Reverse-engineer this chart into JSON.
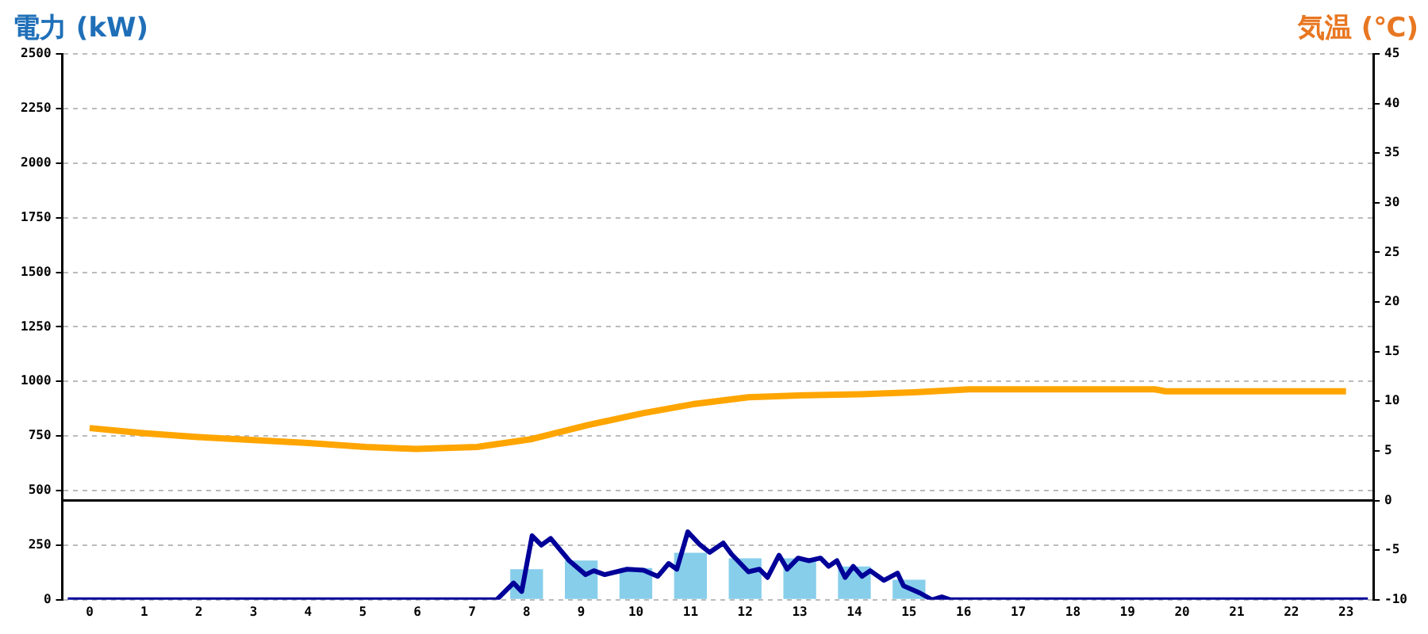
{
  "chart_data": {
    "type": "bar",
    "ylabel": "電力 (kW)",
    "y2label": "気温 (℃)",
    "x": [
      0,
      1,
      2,
      3,
      4,
      5,
      6,
      7,
      8,
      9,
      10,
      11,
      12,
      13,
      14,
      15,
      16,
      17,
      18,
      19,
      20,
      21,
      22,
      23
    ],
    "xlim": [
      -0.5,
      23.5
    ],
    "xticks": [
      0,
      1,
      2,
      3,
      4,
      5,
      6,
      7,
      8,
      9,
      10,
      11,
      12,
      13,
      14,
      15,
      16,
      17,
      18,
      19,
      20,
      21,
      22,
      23
    ],
    "ylim": [
      0,
      2500
    ],
    "yticks": [
      0,
      250,
      500,
      750,
      1000,
      1250,
      1500,
      1750,
      2000,
      2250,
      2500
    ],
    "y2lim": [
      -10,
      45
    ],
    "y2ticks": [
      -10,
      -5,
      0,
      5,
      10,
      15,
      20,
      25,
      30,
      35,
      40,
      45
    ],
    "grid": "y",
    "legend": false,
    "marker": "none",
    "ref_lines": [
      {
        "axis": "y2",
        "value": 0,
        "color": "#000000"
      }
    ],
    "series": [
      {
        "color": "#87ceeb",
        "values": [
          0,
          0,
          0,
          0,
          0,
          0,
          0,
          0,
          140,
          180,
          145,
          215,
          190,
          190,
          153,
          92,
          0,
          0,
          0,
          0,
          0,
          0,
          0,
          0
        ]
      },
      {
        "type": "line",
        "color": "#000099",
        "x": [
          -0.4,
          7.45,
          7.76,
          7.91,
          8.1,
          8.27,
          8.44,
          8.78,
          9.08,
          9.23,
          9.43,
          9.84,
          10.14,
          10.4,
          10.6,
          10.75,
          10.95,
          11.16,
          11.35,
          11.6,
          11.75,
          12.06,
          12.26,
          12.41,
          12.62,
          12.77,
          12.97,
          13.17,
          13.38,
          13.53,
          13.68,
          13.83,
          13.98,
          14.14,
          14.29,
          14.54,
          14.79,
          14.9,
          15.2,
          15.42,
          15.6,
          15.76,
          23.4
        ],
        "values": [
          0,
          0,
          77,
          38,
          293,
          250,
          281,
          179,
          115,
          133,
          115,
          140,
          135,
          107,
          166,
          140,
          311,
          255,
          217,
          260,
          209,
          128,
          140,
          102,
          204,
          140,
          191,
          179,
          191,
          153,
          179,
          102,
          153,
          107,
          133,
          89,
          122,
          64,
          31,
          0,
          13,
          0,
          0
        ]
      },
      {
        "type": "line",
        "axis": "y2",
        "color": "#ffa500",
        "x": [
          0,
          0.97,
          1.98,
          3,
          4,
          5.06,
          5.97,
          7.09,
          8.1,
          9.12,
          10.13,
          11.04,
          12.06,
          13.08,
          14.1,
          15.1,
          16.1,
          19.5,
          19.7,
          23
        ],
        "values": [
          7.3,
          6.8,
          6.4,
          6.1,
          5.8,
          5.4,
          5.2,
          5.4,
          6.2,
          7.6,
          8.8,
          9.7,
          10.4,
          10.6,
          10.7,
          10.9,
          11.2,
          11.2,
          11,
          11
        ]
      }
    ]
  }
}
